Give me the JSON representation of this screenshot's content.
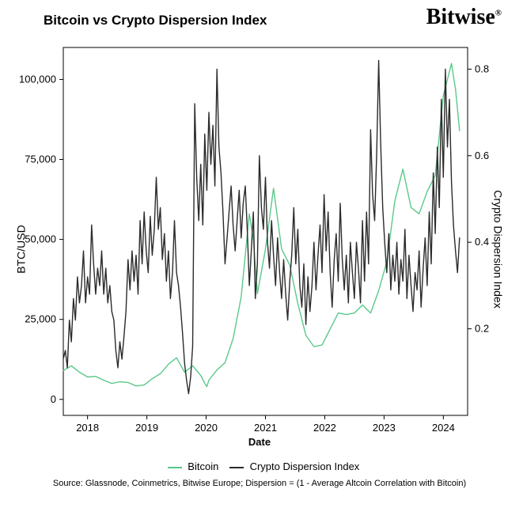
{
  "chart": {
    "type": "line",
    "title": "Bitcoin vs Crypto Dispersion Index",
    "brand": "Bitwise",
    "brand_symbol": "®",
    "xlabel": "Date",
    "ylabel_left": "BTC/USD",
    "ylabel_right": "Crypto Dispersion Index",
    "background_color": "#ffffff",
    "x_ticks": [
      "2018",
      "2019",
      "2020",
      "2021",
      "2022",
      "2023",
      "2024"
    ],
    "x_lim_frac": [
      0.0,
      1.0
    ],
    "y_left_ticks": [
      0,
      25000,
      50000,
      75000,
      100000
    ],
    "y_left_lim": [
      -5000,
      110000
    ],
    "y_right_ticks": [
      0.2,
      0.4,
      0.6,
      0.8
    ],
    "y_right_lim": [
      0.0,
      0.85
    ],
    "grid_color": "#cccccc",
    "axis_color": "#000000",
    "line_width": 1.4,
    "series": {
      "bitcoin": {
        "label": "Bitcoin",
        "color": "#5bc88a",
        "axis": "left",
        "data": [
          [
            0.0,
            9000
          ],
          [
            0.02,
            10500
          ],
          [
            0.04,
            8500
          ],
          [
            0.06,
            7000
          ],
          [
            0.08,
            7200
          ],
          [
            0.1,
            6000
          ],
          [
            0.12,
            5000
          ],
          [
            0.14,
            5500
          ],
          [
            0.16,
            5300
          ],
          [
            0.18,
            4200
          ],
          [
            0.2,
            4500
          ],
          [
            0.22,
            6500
          ],
          [
            0.24,
            8000
          ],
          [
            0.26,
            11000
          ],
          [
            0.28,
            13000
          ],
          [
            0.3,
            8500
          ],
          [
            0.32,
            10500
          ],
          [
            0.34,
            7500
          ],
          [
            0.35,
            5000
          ],
          [
            0.355,
            4000
          ],
          [
            0.36,
            6000
          ],
          [
            0.38,
            9200
          ],
          [
            0.4,
            11500
          ],
          [
            0.42,
            19000
          ],
          [
            0.44,
            32000
          ],
          [
            0.46,
            58000
          ],
          [
            0.47,
            50000
          ],
          [
            0.48,
            33000
          ],
          [
            0.5,
            47000
          ],
          [
            0.52,
            66000
          ],
          [
            0.54,
            47000
          ],
          [
            0.56,
            42000
          ],
          [
            0.58,
            30000
          ],
          [
            0.6,
            20000
          ],
          [
            0.62,
            16500
          ],
          [
            0.64,
            17000
          ],
          [
            0.66,
            22000
          ],
          [
            0.68,
            27000
          ],
          [
            0.7,
            26500
          ],
          [
            0.72,
            27000
          ],
          [
            0.74,
            29500
          ],
          [
            0.76,
            27000
          ],
          [
            0.78,
            34000
          ],
          [
            0.8,
            43000
          ],
          [
            0.82,
            62000
          ],
          [
            0.84,
            72000
          ],
          [
            0.86,
            60000
          ],
          [
            0.88,
            58000
          ],
          [
            0.9,
            65000
          ],
          [
            0.92,
            70000
          ],
          [
            0.94,
            95000
          ],
          [
            0.95,
            100000
          ],
          [
            0.96,
            105000
          ],
          [
            0.97,
            97000
          ],
          [
            0.98,
            84000
          ]
        ]
      },
      "dispersion": {
        "label": "Crypto Dispersion Index",
        "color": "#2b2b2b",
        "axis": "right",
        "data": [
          [
            0.0,
            0.13
          ],
          [
            0.005,
            0.15
          ],
          [
            0.01,
            0.11
          ],
          [
            0.015,
            0.22
          ],
          [
            0.02,
            0.17
          ],
          [
            0.025,
            0.27
          ],
          [
            0.03,
            0.22
          ],
          [
            0.035,
            0.32
          ],
          [
            0.04,
            0.26
          ],
          [
            0.045,
            0.3
          ],
          [
            0.05,
            0.38
          ],
          [
            0.055,
            0.26
          ],
          [
            0.06,
            0.32
          ],
          [
            0.065,
            0.28
          ],
          [
            0.07,
            0.44
          ],
          [
            0.075,
            0.35
          ],
          [
            0.08,
            0.28
          ],
          [
            0.085,
            0.34
          ],
          [
            0.09,
            0.3
          ],
          [
            0.095,
            0.38
          ],
          [
            0.1,
            0.28
          ],
          [
            0.105,
            0.34
          ],
          [
            0.11,
            0.26
          ],
          [
            0.115,
            0.3
          ],
          [
            0.12,
            0.24
          ],
          [
            0.125,
            0.22
          ],
          [
            0.13,
            0.15
          ],
          [
            0.135,
            0.11
          ],
          [
            0.14,
            0.17
          ],
          [
            0.145,
            0.13
          ],
          [
            0.15,
            0.18
          ],
          [
            0.155,
            0.24
          ],
          [
            0.16,
            0.36
          ],
          [
            0.165,
            0.29
          ],
          [
            0.17,
            0.38
          ],
          [
            0.175,
            0.31
          ],
          [
            0.18,
            0.37
          ],
          [
            0.185,
            0.28
          ],
          [
            0.19,
            0.45
          ],
          [
            0.195,
            0.35
          ],
          [
            0.2,
            0.47
          ],
          [
            0.205,
            0.38
          ],
          [
            0.21,
            0.33
          ],
          [
            0.215,
            0.46
          ],
          [
            0.22,
            0.37
          ],
          [
            0.225,
            0.43
          ],
          [
            0.23,
            0.55
          ],
          [
            0.235,
            0.43
          ],
          [
            0.24,
            0.48
          ],
          [
            0.245,
            0.36
          ],
          [
            0.25,
            0.42
          ],
          [
            0.255,
            0.31
          ],
          [
            0.26,
            0.38
          ],
          [
            0.265,
            0.27
          ],
          [
            0.27,
            0.33
          ],
          [
            0.275,
            0.45
          ],
          [
            0.28,
            0.33
          ],
          [
            0.285,
            0.3
          ],
          [
            0.29,
            0.25
          ],
          [
            0.295,
            0.19
          ],
          [
            0.3,
            0.12
          ],
          [
            0.305,
            0.08
          ],
          [
            0.31,
            0.05
          ],
          [
            0.315,
            0.09
          ],
          [
            0.32,
            0.16
          ],
          [
            0.325,
            0.72
          ],
          [
            0.33,
            0.55
          ],
          [
            0.335,
            0.45
          ],
          [
            0.34,
            0.58
          ],
          [
            0.345,
            0.44
          ],
          [
            0.35,
            0.65
          ],
          [
            0.355,
            0.52
          ],
          [
            0.36,
            0.7
          ],
          [
            0.365,
            0.58
          ],
          [
            0.37,
            0.67
          ],
          [
            0.375,
            0.53
          ],
          [
            0.38,
            0.8
          ],
          [
            0.385,
            0.62
          ],
          [
            0.39,
            0.56
          ],
          [
            0.395,
            0.47
          ],
          [
            0.4,
            0.35
          ],
          [
            0.405,
            0.41
          ],
          [
            0.41,
            0.47
          ],
          [
            0.415,
            0.53
          ],
          [
            0.42,
            0.44
          ],
          [
            0.425,
            0.38
          ],
          [
            0.43,
            0.45
          ],
          [
            0.435,
            0.52
          ],
          [
            0.44,
            0.41
          ],
          [
            0.445,
            0.49
          ],
          [
            0.45,
            0.53
          ],
          [
            0.455,
            0.43
          ],
          [
            0.46,
            0.3
          ],
          [
            0.465,
            0.38
          ],
          [
            0.47,
            0.47
          ],
          [
            0.475,
            0.27
          ],
          [
            0.48,
            0.35
          ],
          [
            0.485,
            0.6
          ],
          [
            0.49,
            0.48
          ],
          [
            0.495,
            0.43
          ],
          [
            0.5,
            0.55
          ],
          [
            0.505,
            0.4
          ],
          [
            0.51,
            0.34
          ],
          [
            0.515,
            0.45
          ],
          [
            0.52,
            0.37
          ],
          [
            0.525,
            0.3
          ],
          [
            0.53,
            0.41
          ],
          [
            0.535,
            0.33
          ],
          [
            0.54,
            0.27
          ],
          [
            0.545,
            0.36
          ],
          [
            0.55,
            0.28
          ],
          [
            0.555,
            0.22
          ],
          [
            0.56,
            0.31
          ],
          [
            0.565,
            0.37
          ],
          [
            0.57,
            0.48
          ],
          [
            0.575,
            0.35
          ],
          [
            0.58,
            0.43
          ],
          [
            0.585,
            0.3
          ],
          [
            0.59,
            0.25
          ],
          [
            0.595,
            0.35
          ],
          [
            0.6,
            0.21
          ],
          [
            0.605,
            0.32
          ],
          [
            0.61,
            0.24
          ],
          [
            0.615,
            0.3
          ],
          [
            0.62,
            0.4
          ],
          [
            0.625,
            0.29
          ],
          [
            0.63,
            0.37
          ],
          [
            0.635,
            0.44
          ],
          [
            0.64,
            0.33
          ],
          [
            0.645,
            0.51
          ],
          [
            0.65,
            0.38
          ],
          [
            0.655,
            0.47
          ],
          [
            0.66,
            0.33
          ],
          [
            0.665,
            0.25
          ],
          [
            0.67,
            0.36
          ],
          [
            0.675,
            0.42
          ],
          [
            0.68,
            0.31
          ],
          [
            0.685,
            0.49
          ],
          [
            0.69,
            0.36
          ],
          [
            0.695,
            0.29
          ],
          [
            0.7,
            0.37
          ],
          [
            0.705,
            0.26
          ],
          [
            0.71,
            0.4
          ],
          [
            0.715,
            0.33
          ],
          [
            0.72,
            0.27
          ],
          [
            0.725,
            0.4
          ],
          [
            0.73,
            0.34
          ],
          [
            0.735,
            0.26
          ],
          [
            0.74,
            0.45
          ],
          [
            0.745,
            0.31
          ],
          [
            0.75,
            0.47
          ],
          [
            0.755,
            0.35
          ],
          [
            0.76,
            0.66
          ],
          [
            0.765,
            0.51
          ],
          [
            0.77,
            0.45
          ],
          [
            0.775,
            0.6
          ],
          [
            0.78,
            0.82
          ],
          [
            0.785,
            0.63
          ],
          [
            0.79,
            0.48
          ],
          [
            0.795,
            0.4
          ],
          [
            0.8,
            0.33
          ],
          [
            0.805,
            0.42
          ],
          [
            0.81,
            0.29
          ],
          [
            0.815,
            0.37
          ],
          [
            0.82,
            0.31
          ],
          [
            0.825,
            0.4
          ],
          [
            0.83,
            0.28
          ],
          [
            0.835,
            0.36
          ],
          [
            0.84,
            0.31
          ],
          [
            0.845,
            0.43
          ],
          [
            0.85,
            0.27
          ],
          [
            0.855,
            0.37
          ],
          [
            0.86,
            0.3
          ],
          [
            0.865,
            0.24
          ],
          [
            0.87,
            0.33
          ],
          [
            0.875,
            0.29
          ],
          [
            0.88,
            0.38
          ],
          [
            0.885,
            0.25
          ],
          [
            0.89,
            0.34
          ],
          [
            0.895,
            0.41
          ],
          [
            0.9,
            0.3
          ],
          [
            0.905,
            0.47
          ],
          [
            0.91,
            0.35
          ],
          [
            0.915,
            0.56
          ],
          [
            0.92,
            0.42
          ],
          [
            0.925,
            0.62
          ],
          [
            0.93,
            0.48
          ],
          [
            0.935,
            0.73
          ],
          [
            0.94,
            0.55
          ],
          [
            0.945,
            0.8
          ],
          [
            0.95,
            0.62
          ],
          [
            0.955,
            0.73
          ],
          [
            0.96,
            0.54
          ],
          [
            0.965,
            0.44
          ],
          [
            0.97,
            0.38
          ],
          [
            0.975,
            0.33
          ],
          [
            0.98,
            0.41
          ]
        ]
      }
    }
  },
  "legend": {
    "item1": "Bitcoin",
    "item2": "Crypto Dispersion Index"
  },
  "source": "Source: Glassnode, Coinmetrics, Bitwise Europe; Dispersion = (1 - Average Altcoin Correlation with Bitcoin)"
}
